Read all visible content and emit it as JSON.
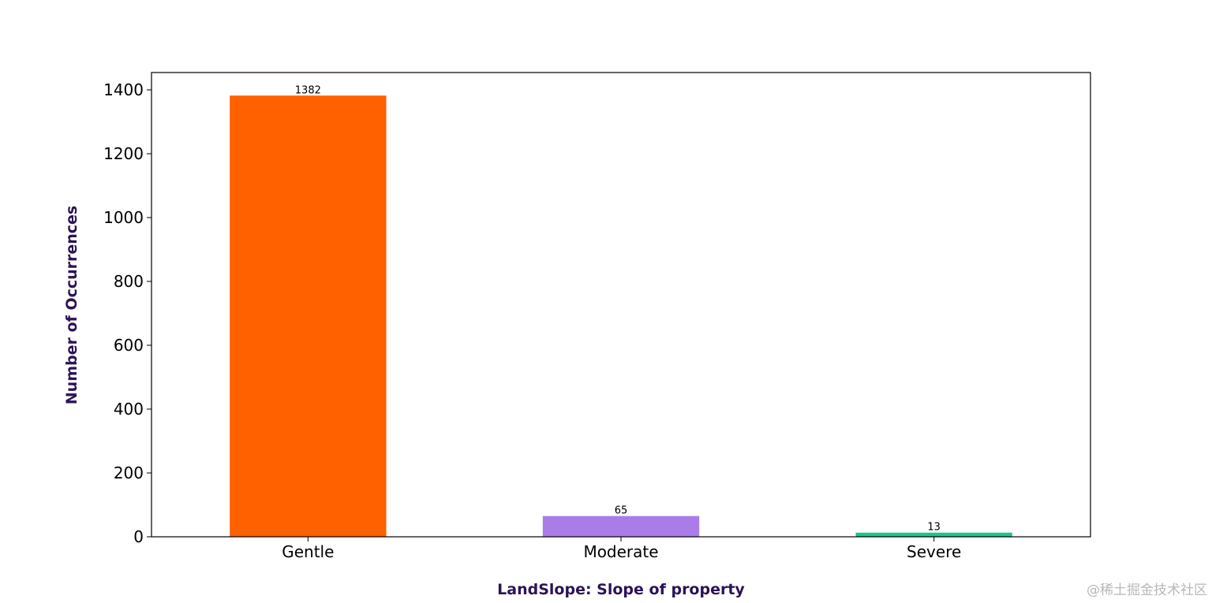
{
  "chart_data": {
    "type": "bar",
    "categories": [
      "Gentle",
      "Moderate",
      "Severe"
    ],
    "values": [
      1382,
      65,
      13
    ],
    "data_labels": [
      "1382",
      "65",
      "13"
    ],
    "colors": [
      "#ff6000",
      "#a97ce8",
      "#1cc58a"
    ],
    "title": "",
    "xlabel": "LandSlope: Slope of property",
    "ylabel": "Number of Occurrences",
    "label_color": "#2b1357",
    "ylim": [
      0,
      1450
    ],
    "yticks": [
      0,
      200,
      400,
      600,
      800,
      1000,
      1200,
      1400
    ],
    "ytick_labels": [
      "0",
      "200",
      "400",
      "600",
      "800",
      "1000",
      "1200",
      "1400"
    ],
    "grid": false,
    "legend": "none"
  },
  "watermark": "@稀土掘金技术社区"
}
